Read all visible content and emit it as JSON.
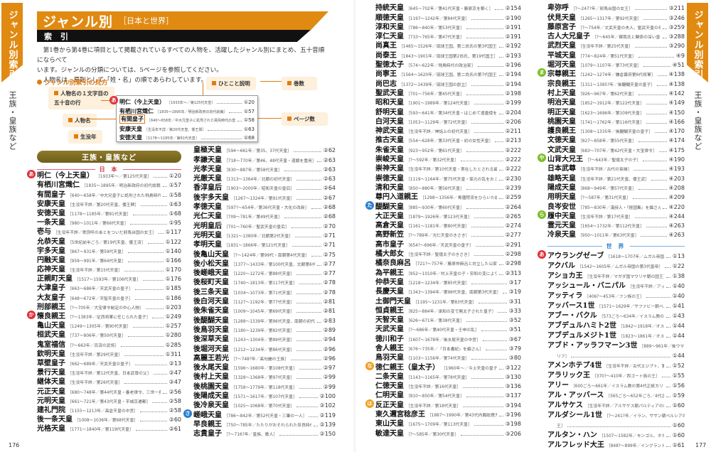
{
  "side_tab": {
    "title": "ジャンル別索引",
    "subtitle": "王族・皇族など"
  },
  "header": {
    "title": "ジャンル別",
    "subtitle": "［日本と世界］",
    "bar": "索 引"
  },
  "intro": {
    "line1": "第1巻から第4巻に項目として掲載されているすべての人物を、活躍したジャンル別にまとめ、五十音順にならべて",
    "line2": "います。ジャンルの分類については、5ページを参照してください。",
    "line3": "人物名は、原則として「姓・名」の順であらわしています。"
  },
  "legend": {
    "title": "ジャンル別索引の見方",
    "callouts": {
      "kana_row": "人物名の１文字目の",
      "kana_row2": "五十音の行",
      "name": "人物名",
      "life": "生没年",
      "comment": "ひとこと説明",
      "volume": "巻数",
      "page": "ページ数"
    },
    "entries": [
      {
        "badge": "あ",
        "name": "明仁（今上天皇）",
        "desc": "［1933年〜／第125代天皇］",
        "ref": "①20"
      },
      {
        "name": "有栖川宮熾仁",
        "desc": "［1835〜1895年／明治新政府の初代総裁］",
        "ref": "①57"
      },
      {
        "name": "有間皇子",
        "desc": "［640〜658年／中大兄皇子に処刑された飛鳥時代の皇子］",
        "ref": "①58"
      },
      {
        "name": "安康天皇",
        "desc": "［生没年不詳／第20代天皇、倭王興］",
        "ref": "①63"
      },
      {
        "name": "安徳天皇",
        "desc": "［1178〜1185年／第81代天皇］",
        "ref": "①68"
      }
    ]
  },
  "category": {
    "label": "王族・皇族など",
    "japan": "日 本",
    "world": "世 界"
  },
  "colors": {
    "orange": "#e08a12",
    "badge_red": "#e0303a",
    "badge_blue": "#2a7fd0",
    "badge_orange": "#f0a020",
    "badge_green": "#7cc02a",
    "pill": "#7a6822"
  },
  "columns": {
    "c1": [
      {
        "badge": "あ",
        "name": "明仁（今上天皇）",
        "desc": "［1933年〜／第125代天皇］",
        "ref": "①20"
      },
      {
        "name": "有栖川宮熾仁",
        "desc": "［1835〜1895年／明治新政府の初代総裁］",
        "ref": "①57"
      },
      {
        "name": "有間皇子",
        "desc": "［640〜658年／中大兄皇子に処刑された飛鳥時代の皇子］",
        "ref": "①58"
      },
      {
        "name": "安康天皇",
        "desc": "［生没年不詳／第20代天皇、倭王興］",
        "ref": "①63"
      },
      {
        "name": "安徳天皇",
        "desc": "［1178〜1185年／第81代天皇］",
        "ref": "①68"
      },
      {
        "name": "一条天皇",
        "desc": "［980〜1011年／第66代天皇］",
        "ref": "①95"
      },
      {
        "name": "壱与",
        "desc": "［生没年不詳／卑弥呼のあとをついだ邪馬台国の女王］",
        "ref": "①117"
      },
      {
        "name": "允恭天皇",
        "desc": "［5世紀前半ごろ／第19代天皇、倭王済］",
        "ref": "①122"
      },
      {
        "name": "宇多天皇",
        "desc": "［867〜931年／第59代天皇］",
        "ref": "①140"
      },
      {
        "name": "円融天皇",
        "desc": "［959〜991年／第64代天皇］",
        "ref": "①166"
      },
      {
        "name": "応神天皇",
        "desc": "［生没年不詳／第15代天皇］",
        "ref": "①170"
      },
      {
        "name": "正親町天皇",
        "desc": "［1517〜1593年／第106代天皇］",
        "ref": "①176"
      },
      {
        "name": "大津皇子",
        "desc": "［663〜686年／天武天皇の皇子］",
        "ref": "①185"
      },
      {
        "name": "大友皇子",
        "desc": "［648〜672年／天智天皇の皇子］",
        "ref": "①186"
      },
      {
        "name": "刑部親王",
        "desc": "［?〜705年／大宝律令制定の中心人物］",
        "ref": "①203"
      },
      {
        "badge": "か",
        "name": "懐良親王",
        "desc": "［?〜1383年／征西将軍に任じられた皇子］",
        "ref": "①249"
      },
      {
        "name": "亀山天皇",
        "desc": "［1249〜1305年／第90代天皇］",
        "ref": "①257"
      },
      {
        "name": "桓武天皇",
        "desc": "［737〜806年／第50代天皇］",
        "ref": "①280"
      },
      {
        "name": "鬼室福信",
        "desc": "［?〜663年／百済の武将］",
        "ref": "①285"
      },
      {
        "name": "欽明天皇",
        "desc": "［生没年不詳／第29代天皇］",
        "ref": "①311"
      },
      {
        "name": "草壁皇子",
        "desc": "［662〜689年／天武天皇の皇子］",
        "ref": "②13"
      },
      {
        "name": "景行天皇",
        "desc": "［生没年不詳／第12代天皇、日本武尊の父］",
        "ref": "②47"
      },
      {
        "name": "継体天皇",
        "desc": "［生没年不詳／第26代天皇］",
        "ref": "②47"
      },
      {
        "name": "元正天皇",
        "desc": "［680〜748年／第44代天皇・養老律令、三世一身の法］",
        "ref": "②56"
      },
      {
        "name": "元明天皇",
        "desc": "［661〜721年／第43代天皇・平城京遷都］",
        "ref": "②58"
      },
      {
        "name": "建礼門院",
        "desc": "［1155〜1213年／高倉天皇の中宮］",
        "ref": "②58"
      },
      {
        "name": "後一条天皇",
        "desc": "［1008〜1036年／第68代天皇］",
        "ref": "②60"
      },
      {
        "name": "光格天皇",
        "desc": "［1771〜1840年／第119代天皇］",
        "ref": "②61"
      }
    ],
    "c2": [
      {
        "name": "皇極天皇",
        "desc": "［594〜661年／第35、37代天皇］",
        "ref": "②62"
      },
      {
        "name": "孝謙天皇",
        "desc": "［718〜770年／第46、48代天皇・道鏡を重用］",
        "ref": "②63"
      },
      {
        "name": "光孝天皇",
        "desc": "［830〜887年／第58代天皇］",
        "ref": "②63"
      },
      {
        "name": "光厳天皇",
        "desc": "［1313〜1364年／北朝の初代天皇］",
        "ref": "②63"
      },
      {
        "name": "香淳皇后",
        "desc": "［1903〜2000年／昭和天皇の皇后］",
        "ref": "②64"
      },
      {
        "name": "後宇多天皇",
        "desc": "［1267〜1324年／第91代天皇］",
        "ref": "②67"
      },
      {
        "name": "孝徳天皇",
        "desc": "［597?〜654年／第36代天皇・大化の改新］",
        "ref": "②68"
      },
      {
        "name": "光仁天皇",
        "desc": "［709〜781年／第49代天皇］",
        "ref": "②68"
      },
      {
        "name": "光明皇后",
        "desc": "［701〜760年／聖武天皇の皇后］",
        "ref": "②70"
      },
      {
        "name": "光明天皇",
        "desc": "［1321〜1380年／北朝第2代天皇］",
        "ref": "②71"
      },
      {
        "name": "孝明天皇",
        "desc": "［1831〜1866年／第121代天皇］",
        "ref": "②71"
      },
      {
        "name": "後亀山天皇",
        "desc": "［?〜1424年／第99代・南朝第4代天皇］",
        "ref": "②75"
      },
      {
        "name": "後小松天皇",
        "desc": "［1377〜1433年／第100代天皇、北朝第6代天皇］",
        "ref": "②77"
      },
      {
        "name": "後嵯峨天皇",
        "desc": "［1220〜1272年／第88代天皇］",
        "ref": "②77"
      },
      {
        "name": "後桜町天皇",
        "desc": "［1740〜1813年／第117代天皇］",
        "ref": "②78"
      },
      {
        "name": "後三条天皇",
        "desc": "［1034〜1073年／第71代天皇］",
        "ref": "②78"
      },
      {
        "name": "後白河天皇",
        "desc": "［1127〜1192年／第77代天皇］",
        "ref": "②81"
      },
      {
        "name": "後朱雀天皇",
        "desc": "［1009〜1045年／第69代天皇］",
        "ref": "②81"
      },
      {
        "name": "後醍醐天皇",
        "desc": "［1288〜1339年／第96代天皇、南朝の初代天皇］",
        "ref": "②83"
      },
      {
        "name": "後鳥羽天皇",
        "desc": "［1180〜1239年／第82代天皇］",
        "ref": "②89"
      },
      {
        "name": "後深草天皇",
        "desc": "［1243〜1304年／第89代天皇］",
        "ref": "②94"
      },
      {
        "name": "後堀河天皇",
        "desc": "［1212〜1234年／第86代天皇］",
        "ref": "②96"
      },
      {
        "name": "高麗王若光",
        "desc": "［?〜748?年／高句麗の王族］",
        "ref": "②96"
      },
      {
        "name": "後水尾天皇",
        "desc": "［1596〜1680年／第108代天皇］",
        "ref": "②97"
      },
      {
        "name": "後村上天皇",
        "desc": "［1328〜1368年／第97代天皇］",
        "ref": "②99"
      },
      {
        "name": "後桃園天皇",
        "desc": "［1758〜1779年／第118代天皇］",
        "ref": "②99"
      },
      {
        "name": "後陽成天皇",
        "desc": "［1571〜1617年／第107代天皇］",
        "ref": "②100"
      },
      {
        "name": "後冷泉天皇",
        "desc": "［1025〜1068年／第70代天皇］",
        "ref": "②102"
      },
      {
        "badge": "さ",
        "name": "嵯峨天皇",
        "desc": "［786〜842年／第52代天皇・三筆の一人］",
        "ref": "②119"
      },
      {
        "name": "早良親王",
        "desc": "［750〜785年／たたりがおそれられた奈良時代の皇子］",
        "ref": "②139"
      },
      {
        "name": "志貴皇子",
        "desc": "［?〜716?年／皇族、歌人］",
        "ref": "②150"
      }
    ],
    "c3": [
      {
        "name": "持統天皇",
        "desc": "［645〜702年／第41代天皇・藤原京を築く］",
        "ref": "②154"
      },
      {
        "name": "順徳天皇",
        "desc": "［1197〜1242年／第84代天皇］",
        "ref": "②190"
      },
      {
        "name": "淳和天皇",
        "desc": "［786〜840年／第53代天皇］",
        "ref": "②191"
      },
      {
        "name": "淳仁天皇",
        "desc": "［733〜765年／第47代天皇］",
        "ref": "②191"
      },
      {
        "name": "尚真王",
        "desc": "［1465〜1526年／琉球王国、第二尚氏の第3代国王］",
        "ref": "②192"
      },
      {
        "name": "尚泰王",
        "desc": "［1843〜1901年／琉球王国第2尚氏、第19代国王］",
        "ref": "②193"
      },
      {
        "name": "聖徳太子",
        "desc": "［574〜622年／飛鳥時代の政治家］",
        "ref": "②196"
      },
      {
        "name": "尚寧王",
        "desc": "［1564〜1620年／琉球王国、第二尚氏の第7代国王］",
        "ref": "②194"
      },
      {
        "name": "尚巴志",
        "desc": "［1372〜1439年／琉球王国の創立］",
        "ref": "②194"
      },
      {
        "name": "聖武天皇",
        "desc": "［701〜756年／第45代天皇］",
        "ref": "②198"
      },
      {
        "name": "昭和天皇",
        "desc": "［1901〜1989年／第124代天皇］",
        "ref": "②199"
      },
      {
        "name": "舒明天皇",
        "desc": "［593〜641年／第34代天皇・はじめて遣唐使を派遣］",
        "ref": "②204"
      },
      {
        "name": "白河天皇",
        "desc": "［1053〜1129年／第72代天皇］",
        "ref": "②206"
      },
      {
        "name": "神武天皇",
        "desc": "［生没年不詳／神話上の初代天皇］",
        "ref": "②211"
      },
      {
        "name": "推古天皇",
        "desc": "［554〜628年／第33代天皇・初の女性天皇］",
        "ref": "②213"
      },
      {
        "name": "朱雀天皇",
        "desc": "［923〜952年／第61代天皇］",
        "ref": "②222"
      },
      {
        "name": "崇峻天皇",
        "desc": "［?〜592年／第32代天皇］",
        "ref": "②222"
      },
      {
        "name": "崇神天皇",
        "desc": "［生没年不詳／第10代天皇・実在したとされる最古の天皇］",
        "ref": "②222"
      },
      {
        "name": "崇徳天皇",
        "desc": "［1119〜1164年／第75代天皇・保元の乱をおこす］",
        "ref": "②230"
      },
      {
        "name": "清和天皇",
        "desc": "［850〜880年／第56代天皇］",
        "ref": "②239"
      },
      {
        "name": "尊円入道親王",
        "desc": "［1298〜1356年／青蓮院流をひらいた能書家］",
        "ref": "②259"
      },
      {
        "badge": "た",
        "name": "醍醐天皇",
        "desc": "［885〜930年／第60代天皇］",
        "ref": "②264"
      },
      {
        "name": "大正天皇",
        "desc": "［1879〜1926年／第123代天皇］",
        "ref": "②265"
      },
      {
        "name": "高倉天皇",
        "desc": "［1161〜1181年／第80代天皇］",
        "ref": "②274"
      },
      {
        "name": "高野新笠",
        "desc": "［?〜789年／光仁天皇のきさき］",
        "ref": "②277"
      },
      {
        "name": "高市皇子",
        "desc": "［654?〜696年／天武天皇の皇子］",
        "ref": "②291"
      },
      {
        "name": "橘大郎女",
        "desc": "［生没年不詳／聖徳太子のきさき］",
        "ref": "②298"
      },
      {
        "name": "橘奈良麻呂",
        "desc": "［721?〜757年／藤原仲麻呂と対立した公家の首謀］",
        "ref": "②298"
      },
      {
        "name": "為平親王",
        "desc": "［952〜1010年／村上天皇の子・安和の変により失脚した］",
        "ref": "②313"
      },
      {
        "name": "仲恭天皇",
        "desc": "［1218〜1234年／第85代天皇］",
        "ref": "③17"
      },
      {
        "name": "長慶天皇",
        "desc": "［1343〜1394年／第98代天皇、南朝第3代天皇］",
        "ref": "③19"
      },
      {
        "name": "土御門天皇",
        "desc": "［1195〜1231年／第83代天皇］",
        "ref": "③31"
      },
      {
        "name": "恒貞親王",
        "desc": "［825〜884年／承和の変で廃太子された皇子］",
        "ref": "③33"
      },
      {
        "name": "天智天皇",
        "desc": "［626〜671年／第38代天皇］",
        "ref": "③52"
      },
      {
        "name": "天武天皇",
        "desc": "［?〜686年／第40代天皇・壬申の乱］",
        "ref": "③51"
      },
      {
        "name": "徳川和子",
        "desc": "［1607〜1678年／後水尾天皇の中宮］",
        "ref": "③67"
      },
      {
        "name": "舎人親王",
        "desc": "［676〜735年／『日本書紀』を編さん］",
        "ref": "③79"
      },
      {
        "name": "鳥羽天皇",
        "desc": "［1103〜1156年／第74代天皇］",
        "ref": "③80"
      },
      {
        "badge": "な",
        "name": "徳仁親王（皇太子）",
        "desc": "［1960年〜／今上天皇の皇子］",
        "ref": "③122"
      },
      {
        "name": "二条天皇",
        "desc": "［1143〜1165年／第78代天皇］",
        "ref": "③130"
      },
      {
        "name": "仁徳天皇",
        "desc": "［生没年不詳／第16代天皇］",
        "ref": "③136"
      },
      {
        "name": "仁明天皇",
        "desc": "［810〜850年／第54代天皇］",
        "ref": "③137"
      },
      {
        "badge": "は",
        "name": "反正天皇",
        "desc": "［生没年不詳／第18代天皇］",
        "ref": "③194"
      },
      {
        "name": "東久邇宮稔彦王",
        "desc": "［1887〜1990年／第43代内閣総理大臣］",
        "ref": "③196"
      },
      {
        "name": "東山天皇",
        "desc": "［1675〜1709年／第113代天皇］",
        "ref": "③198"
      },
      {
        "name": "敏達天皇",
        "desc": "［?〜585年／第30代天皇］",
        "ref": "③206"
      }
    ],
    "c4": [
      {
        "name": "卑弥呼",
        "desc": "［?〜247?年／邪馬台国の女王］",
        "ref": "③211"
      },
      {
        "name": "伏見天皇",
        "desc": "［1265〜1317年／第92代天皇］",
        "ref": "③246"
      },
      {
        "name": "藤原宮子",
        "desc": "［?〜754年／文武天皇の夫人、聖武天皇の母］",
        "ref": "③259"
      },
      {
        "name": "古人大兄皇子",
        "desc": "［?〜645年／蘇我氏と関係の深い皇子］",
        "ref": "③288"
      },
      {
        "name": "武烈天皇",
        "desc": "［生没年不詳／第25代天皇］",
        "ref": "③290"
      },
      {
        "name": "平城天皇",
        "desc": "［774〜824年／第51代天皇］",
        "ref": "④9"
      },
      {
        "name": "堀河天皇",
        "desc": "［1079〜1107年／第73代天皇］",
        "ref": "④51"
      },
      {
        "badge": "ま",
        "name": "宗尊親王",
        "desc": "［1242〜1274年／鎌倉幕府第6代将軍］",
        "ref": "④138"
      },
      {
        "name": "宗良親王",
        "desc": "［1311〜1385?年／後醍醐天皇の皇子］",
        "ref": "④138"
      },
      {
        "name": "村上天皇",
        "desc": "［926〜967年／第62代天皇］",
        "ref": "④142"
      },
      {
        "name": "明治天皇",
        "desc": "［1852〜1912年／第122代天皇］",
        "ref": "④149"
      },
      {
        "name": "明正天皇",
        "desc": "［1623〜1696年／第109代天皇］",
        "ref": "④150"
      },
      {
        "name": "桃園天皇",
        "desc": "［1741〜1762年／第116代天皇］",
        "ref": "④166"
      },
      {
        "name": "護良親王",
        "desc": "［1308〜1335年／後醍醐天皇の皇子］",
        "ref": "④170"
      },
      {
        "name": "文徳天皇",
        "desc": "［827〜858年／第55代天皇］",
        "ref": "④174"
      },
      {
        "name": "文武天皇",
        "desc": "［683〜707年／第42代天皇・大宝律令］",
        "ref": "④175"
      },
      {
        "badge": "や",
        "name": "山背大兄王",
        "desc": "［?〜643年／聖徳太子の子］",
        "ref": "④190"
      },
      {
        "name": "日本武尊",
        "desc": "［生没年不詳／古代の英雄］",
        "ref": "④193"
      },
      {
        "name": "雄略天皇",
        "desc": "［生没年不詳／第21代天皇、倭王武］",
        "ref": "④203"
      },
      {
        "name": "陽成天皇",
        "desc": "［868〜949年／第57代天皇］",
        "ref": "④208"
      },
      {
        "name": "用明天皇",
        "desc": "［?〜587年／第31代天皇］",
        "ref": "④209"
      },
      {
        "name": "良岑安世",
        "desc": "［785〜830年／漢詩人・『経国集』を編さん］",
        "ref": "④220"
      },
      {
        "badge": "ら",
        "name": "履中天皇",
        "desc": "［生没年不詳／第17代天皇］",
        "ref": "④244"
      },
      {
        "name": "霊元天皇",
        "desc": "［1654〜1732年／第112代天皇］",
        "ref": "④263"
      },
      {
        "name": "冷泉天皇",
        "desc": "［950〜1011年／第63代天皇］",
        "ref": "④263"
      }
    ],
    "c4_world": [
      {
        "badge": "あ",
        "name": "アウラングゼーブ",
        "desc": "［1618〜1707年／ムガル帝国の第6代皇帝］",
        "ref": "①13"
      },
      {
        "name": "アクバル",
        "desc": "［1542〜1605年／ムガル帝国の第3代皇帝］",
        "ref": "①22"
      },
      {
        "name": "アショカ王",
        "desc": "［生没年不詳／マガダ国マウリヤ朝の国王］",
        "ref": "①38"
      },
      {
        "name": "アッシュール・バニパル",
        "desc": "［生没年不詳／アッシリア王国の王］",
        "ref": "①40"
      },
      {
        "name": "アッティラ",
        "desc": "［406?〜453年／フン族の王］",
        "ref": "①40"
      },
      {
        "name": "アッバース1世",
        "desc": "［1571〜1629年／サファビー朝ペルシアの第5代王］",
        "ref": "①41"
      },
      {
        "name": "アブー・バクル",
        "desc": "［573ごろ〜634年／イスラム教の初代正統カリフ］",
        "ref": "①43"
      },
      {
        "name": "アブデュルハミト2世",
        "desc": "［1842〜1918年／オスマン帝国第34代皇帝］",
        "ref": "①44"
      },
      {
        "name": "アブデュルメジト1世",
        "desc": "［1823〜1861年／オスマン帝国第31代皇帝］",
        "ref": "①44"
      },
      {
        "name": "アブド・アッラフマーン3世",
        "desc": "［889〜961年／後ウマイヤ朝第8代君主、初代カ",
        "ref": ""
      },
      {
        "cont": true,
        "name": "",
        "desc": "リフ］",
        "ref": "①44"
      },
      {
        "name": "アメンホテプ4世",
        "desc": "［生没年不詳／古代エジプト、第18王朝の王］",
        "ref": "①52"
      },
      {
        "name": "アラリック王",
        "desc": "［370?〜410年／西ゴート族の王］",
        "ref": "①55"
      },
      {
        "name": "アリー",
        "desc": "［600ごろ〜661年／イスラム教の第4代正統カリフ］",
        "ref": "①56"
      },
      {
        "name": "アル・アッバース",
        "desc": "［565ごろ〜652年ごろ／4代正統カリフのアリーの父］",
        "ref": "①59"
      },
      {
        "name": "アルサケス",
        "desc": "［生没年不詳／アルサケス朝パルティアの初代国王］",
        "ref": "①60"
      },
      {
        "name": "アルダシール1世",
        "desc": "［?〜241?年／イラン、ササン朝ペルシアの実質的な初代国",
        "ref": ""
      },
      {
        "cont": true,
        "name": "",
        "desc": "王］",
        "ref": "①60"
      },
      {
        "name": "アルタン・ハン",
        "desc": "［1507〜1582年／モンゴル、タタールのハン］",
        "ref": "①60"
      },
      {
        "name": "アルフレッド大王",
        "desc": "［848?〜899年／イングランド王］",
        "ref": "①61"
      }
    ]
  },
  "footer": {
    "left_page": "176",
    "right_page": "177"
  }
}
